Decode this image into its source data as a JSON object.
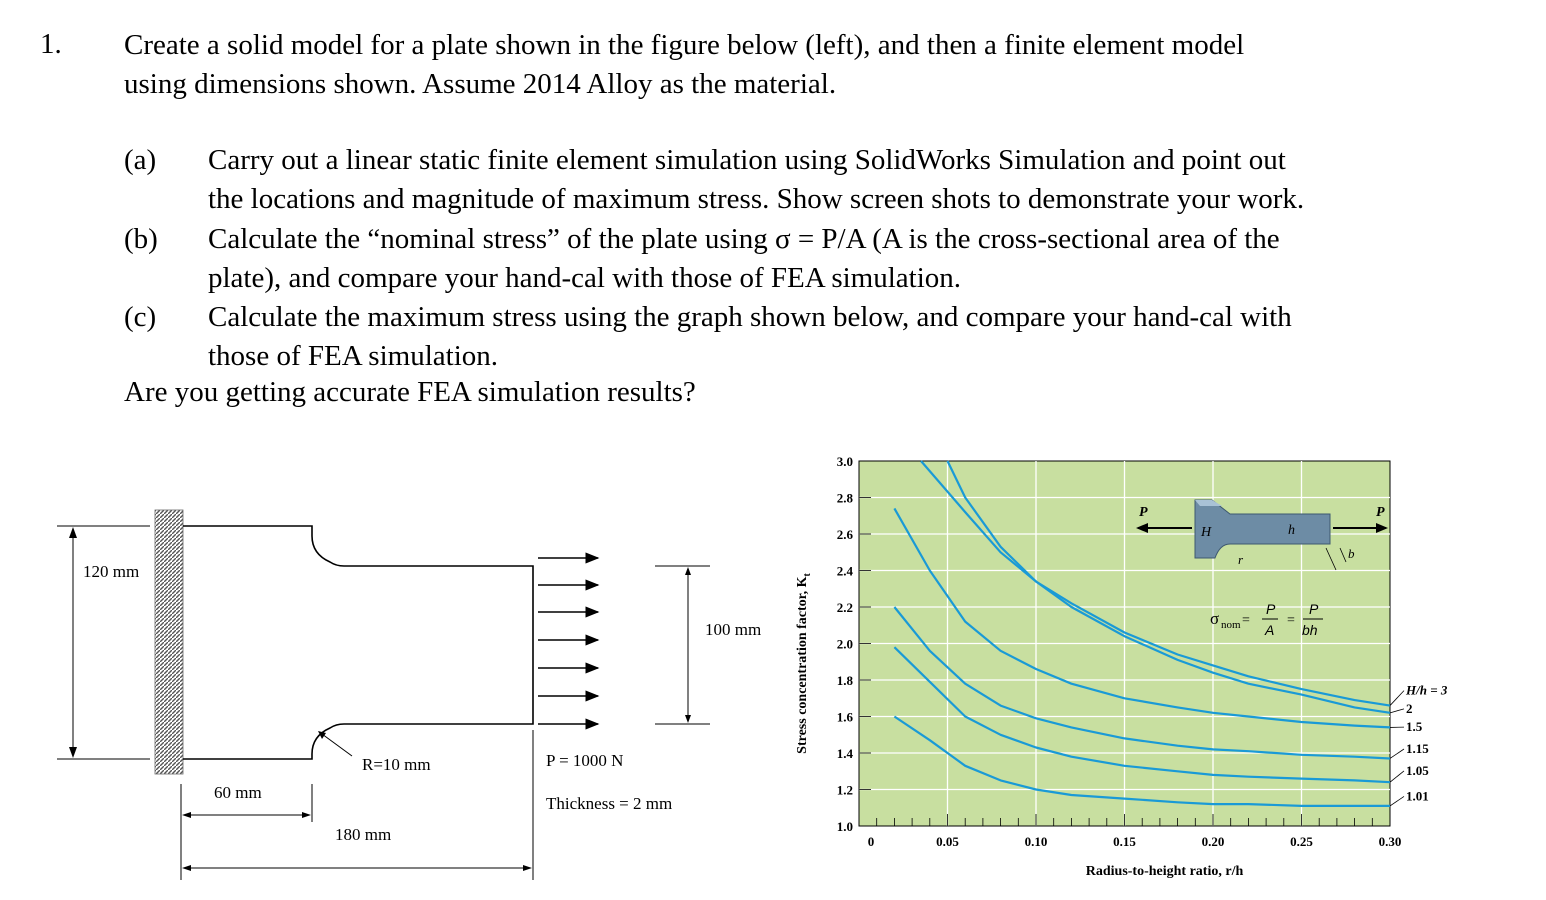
{
  "problem": {
    "number": "1.",
    "line1": "Create a solid model for a plate shown in the figure below (left), and then a finite element model",
    "line2": "using dimensions shown. Assume 2014 Alloy as the material."
  },
  "parts": [
    {
      "label": "(a)",
      "line1": "Carry out a linear static finite element simulation using SolidWorks Simulation and point out",
      "line2": "the locations and magnitude of maximum stress. Show screen shots to demonstrate your work."
    },
    {
      "label": "(b)",
      "line1": "Calculate the “nominal stress” of the plate using σ = P/A (A is the cross-sectional area of the",
      "line2": "plate), and compare your hand-cal with those of FEA simulation."
    },
    {
      "label": "(c)",
      "line1": "Calculate the maximum stress using the graph shown below, and compare your hand-cal with",
      "line2": "those of FEA simulation."
    }
  ],
  "closing": "Are you getting accurate FEA simulation results?",
  "plate_figure": {
    "dim_height": "120 mm",
    "dim_neck": "100 mm",
    "dim_shoulder": "60 mm",
    "dim_length": "180 mm",
    "radius_label": "R=10 mm",
    "load_label": "P = 1000 N",
    "thickness_label": "Thickness = 2 mm"
  },
  "chart_data": {
    "type": "line",
    "xlabel": "Radius-to-height ratio, r/h",
    "ylabel": "Stress concentration factor, K",
    "ylabel_sub": "t",
    "xlim": [
      0,
      0.3
    ],
    "ylim": [
      1.0,
      3.0
    ],
    "x_ticks": [
      "0",
      "0.05",
      "0.10",
      "0.15",
      "0.20",
      "0.25",
      "0.30"
    ],
    "y_ticks": [
      "1.0",
      "1.2",
      "1.4",
      "1.6",
      "1.8",
      "2.0",
      "2.2",
      "2.4",
      "2.6",
      "2.8",
      "3.0"
    ],
    "background": "#c8dfa0",
    "line_color": "#1a9ad6",
    "series": [
      {
        "name": "H/h = 3",
        "x": [
          0.035,
          0.06,
          0.08,
          0.1,
          0.12,
          0.15,
          0.18,
          0.2,
          0.22,
          0.25,
          0.28,
          0.3
        ],
        "y": [
          3.0,
          2.72,
          2.5,
          2.34,
          2.22,
          2.06,
          1.94,
          1.88,
          1.82,
          1.75,
          1.69,
          1.66
        ]
      },
      {
        "name": "2",
        "x": [
          0.05,
          0.06,
          0.08,
          0.1,
          0.12,
          0.15,
          0.18,
          0.2,
          0.22,
          0.25,
          0.28,
          0.3
        ],
        "y": [
          3.0,
          2.8,
          2.53,
          2.34,
          2.2,
          2.04,
          1.91,
          1.84,
          1.78,
          1.72,
          1.65,
          1.62
        ]
      },
      {
        "name": "1.5",
        "x": [
          0.02,
          0.04,
          0.06,
          0.08,
          0.1,
          0.12,
          0.15,
          0.18,
          0.2,
          0.22,
          0.25,
          0.28,
          0.3
        ],
        "y": [
          2.74,
          2.4,
          2.12,
          1.96,
          1.86,
          1.78,
          1.7,
          1.65,
          1.62,
          1.6,
          1.57,
          1.55,
          1.54
        ]
      },
      {
        "name": "1.15",
        "x": [
          0.02,
          0.04,
          0.06,
          0.08,
          0.1,
          0.12,
          0.15,
          0.18,
          0.2,
          0.22,
          0.25,
          0.28,
          0.3
        ],
        "y": [
          2.2,
          1.96,
          1.78,
          1.66,
          1.59,
          1.54,
          1.48,
          1.44,
          1.42,
          1.41,
          1.39,
          1.38,
          1.37
        ]
      },
      {
        "name": "1.05",
        "x": [
          0.02,
          0.04,
          0.06,
          0.08,
          0.1,
          0.12,
          0.15,
          0.18,
          0.2,
          0.22,
          0.25,
          0.28,
          0.3
        ],
        "y": [
          1.98,
          1.79,
          1.6,
          1.5,
          1.43,
          1.38,
          1.33,
          1.3,
          1.28,
          1.27,
          1.26,
          1.25,
          1.24
        ]
      },
      {
        "name": "1.01",
        "x": [
          0.02,
          0.04,
          0.06,
          0.08,
          0.1,
          0.12,
          0.15,
          0.18,
          0.2,
          0.22,
          0.25,
          0.28,
          0.3
        ],
        "y": [
          1.6,
          1.47,
          1.33,
          1.25,
          1.2,
          1.17,
          1.15,
          1.13,
          1.12,
          1.12,
          1.11,
          1.11,
          1.11
        ]
      }
    ],
    "inset": {
      "labels": {
        "H": "H",
        "h": "h",
        "r": "r",
        "b": "b",
        "P": "P"
      },
      "formula": {
        "sigma": "σ",
        "sub": "nom",
        "eq1": "=",
        "num1": "P",
        "den1": "A",
        "eq2": "=",
        "num2": "P",
        "den2": "bh"
      }
    }
  }
}
